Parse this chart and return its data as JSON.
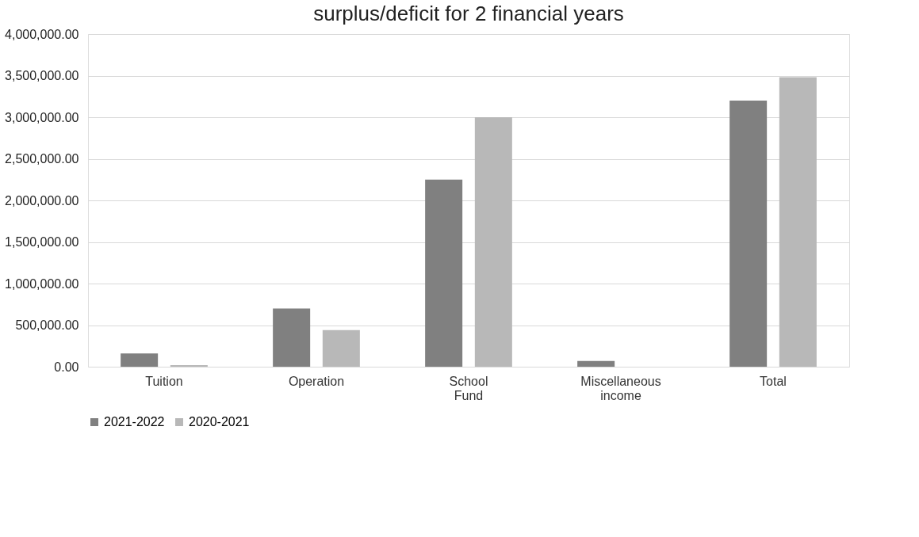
{
  "chart_data": {
    "type": "bar",
    "title": "surplus/deficit for 2 financial years",
    "categories": [
      "Tuition",
      "Operation",
      "School Fund",
      "Miscellaneous income",
      "Total"
    ],
    "series": [
      {
        "name": "2021-2022",
        "color": "#808080",
        "values": [
          160000,
          700000,
          2250000,
          70000,
          3200000
        ]
      },
      {
        "name": "2020-2021",
        "color": "#b8b8b8",
        "values": [
          20000,
          440000,
          3000000,
          0,
          3480000
        ]
      }
    ],
    "ylim": [
      0,
      4000000
    ],
    "yticks": [
      {
        "value": 0,
        "label": "0.00"
      },
      {
        "value": 500000,
        "label": "500,000.00"
      },
      {
        "value": 1000000,
        "label": "1,000,000.00"
      },
      {
        "value": 1500000,
        "label": "1,500,000.00"
      },
      {
        "value": 2000000,
        "label": "2,000,000.00"
      },
      {
        "value": 2500000,
        "label": "2,500,000.00"
      },
      {
        "value": 3000000,
        "label": "3,000,000.00"
      },
      {
        "value": 3500000,
        "label": "3,500,000.00"
      },
      {
        "value": 4000000,
        "label": "4,000,000.00"
      }
    ],
    "grid": "y",
    "legend": "bottom"
  }
}
